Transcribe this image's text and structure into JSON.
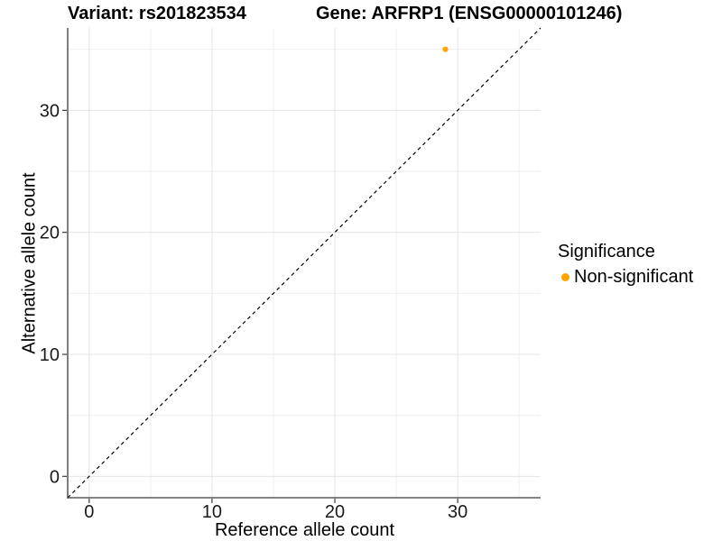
{
  "page": {
    "background": "#ffffff"
  },
  "header": {
    "variant_title": "Variant: rs201823534",
    "gene_title": "Gene: ARFRP1 (ENSG00000101246)"
  },
  "chart_data": {
    "type": "scatter",
    "xlabel": "Reference allele count",
    "ylabel": "Alternative allele count",
    "xlim": [
      -1.75,
      36.75
    ],
    "ylim": [
      -1.75,
      36.75
    ],
    "x_ticks": [
      0,
      10,
      20,
      30
    ],
    "y_ticks": [
      0,
      10,
      20,
      30
    ],
    "x_minor_ticks": [
      5,
      15,
      25,
      35
    ],
    "y_minor_ticks": [
      5,
      15,
      25,
      35
    ],
    "grid": true,
    "reference_line": {
      "type": "abline",
      "slope": 1,
      "intercept": 0,
      "style": "dashed",
      "color": "#000000"
    },
    "series": [
      {
        "name": "Non-significant",
        "color": "#FFA500",
        "points": [
          {
            "x": 29,
            "y": 35
          }
        ]
      }
    ],
    "legend": {
      "title": "Significance",
      "position": "right",
      "items": [
        {
          "label": "Non-significant",
          "color": "#FFA500"
        }
      ]
    },
    "colors": {
      "grid_major": "#E4E4E4",
      "grid_minor": "#EFEFEF",
      "axis_line": "#3A3A3A",
      "tick_text": "#1A1A1A"
    }
  }
}
